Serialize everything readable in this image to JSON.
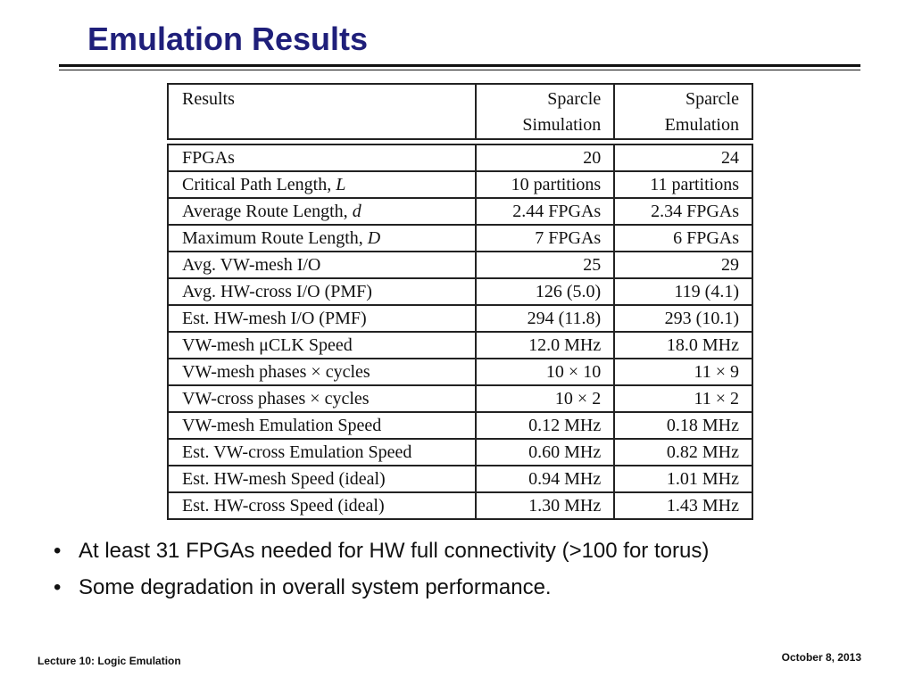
{
  "title": "Emulation Results",
  "table": {
    "headers": {
      "results": "Results",
      "col_sim_line1": "Sparcle",
      "col_sim_line2": "Simulation",
      "col_emu_line1": "Sparcle",
      "col_emu_line2": "Emulation"
    },
    "rows": [
      {
        "label": "FPGAs",
        "var": "",
        "sim": "20",
        "emu": "24"
      },
      {
        "label": "Critical Path Length, ",
        "var": "L",
        "sim": "10 partitions",
        "emu": "11 partitions"
      },
      {
        "label": "Average Route Length, ",
        "var": "d",
        "sim": "2.44 FPGAs",
        "emu": "2.34 FPGAs"
      },
      {
        "label": "Maximum Route Length, ",
        "var": "D",
        "sim": "7 FPGAs",
        "emu": "6 FPGAs"
      },
      {
        "label": "Avg.  VW-mesh I/O",
        "var": "",
        "sim": "25",
        "emu": "29"
      },
      {
        "label": "Avg.  HW-cross I/O (PMF)",
        "var": "",
        "sim": "126 (5.0)",
        "emu": "119 (4.1)"
      },
      {
        "label": "Est.  HW-mesh I/O (PMF)",
        "var": "",
        "sim": "294 (11.8)",
        "emu": "293 (10.1)"
      },
      {
        "label": "VW-mesh μCLK Speed",
        "var": "",
        "sim": "12.0 MHz",
        "emu": "18.0 MHz"
      },
      {
        "label": "VW-mesh phases × cycles",
        "var": "",
        "sim": "10 × 10",
        "emu": "11 × 9"
      },
      {
        "label": "VW-cross phases × cycles",
        "var": "",
        "sim": "10 × 2",
        "emu": "11 × 2"
      },
      {
        "label": "VW-mesh Emulation Speed",
        "var": "",
        "sim": "0.12 MHz",
        "emu": "0.18 MHz"
      },
      {
        "label": "Est.  VW-cross Emulation Speed",
        "var": "",
        "sim": "0.60 MHz",
        "emu": "0.82 MHz"
      },
      {
        "label": "Est.  HW-mesh Speed (ideal)",
        "var": "",
        "sim": "0.94 MHz",
        "emu": "1.01 MHz"
      },
      {
        "label": "Est.  HW-cross Speed (ideal)",
        "var": "",
        "sim": "1.30 MHz",
        "emu": "1.43 MHz"
      }
    ]
  },
  "bullets": {
    "marker": "•",
    "items": [
      "At least 31 FPGAs needed for HW full connectivity (>100 for torus)",
      "Some degradation in overall system performance."
    ]
  },
  "footer": {
    "left": "Lecture 10: Logic Emulation",
    "right": "October 8, 2013"
  },
  "colors": {
    "title": "#1f1f7a",
    "rule": "#111111"
  }
}
